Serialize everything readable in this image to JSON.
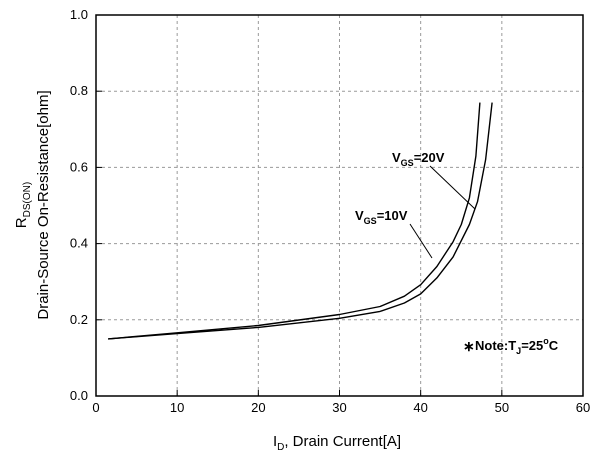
{
  "chart_data": {
    "type": "line",
    "title": "",
    "x_axis": {
      "label_main": "I",
      "label_sub": "D",
      "label_rest": ", Drain Current[A]",
      "lim": [
        0,
        60
      ],
      "ticks": [
        0,
        10,
        20,
        30,
        40,
        50,
        60
      ]
    },
    "y_axis": {
      "label_main": "R",
      "label_sub": "DS(ON)",
      "label_line2": "Drain-Source On-Resistance[ohm]",
      "lim": [
        0.0,
        1.0
      ],
      "ticks": [
        0.0,
        0.2,
        0.4,
        0.6,
        0.8,
        1.0
      ],
      "tick_labels": [
        "0.0",
        "0.2",
        "0.4",
        "0.6",
        "0.8",
        "1.0"
      ]
    },
    "grid": true,
    "series": [
      {
        "name": "VGS=20V",
        "x": [
          1.5,
          10,
          20,
          30,
          35,
          38,
          40,
          42,
          44,
          45,
          46,
          46.8,
          47.3
        ],
        "y": [
          0.15,
          0.166,
          0.185,
          0.214,
          0.235,
          0.262,
          0.292,
          0.34,
          0.405,
          0.45,
          0.52,
          0.63,
          0.77
        ]
      },
      {
        "name": "VGS=10V",
        "x": [
          1.5,
          10,
          20,
          30,
          35,
          38,
          40,
          42,
          44,
          46,
          47,
          48,
          48.8
        ],
        "y": [
          0.15,
          0.164,
          0.18,
          0.204,
          0.222,
          0.244,
          0.268,
          0.31,
          0.365,
          0.45,
          0.51,
          0.62,
          0.77
        ]
      }
    ],
    "annotations": [
      {
        "main": "V",
        "sub": "GS",
        "rest": "=20V"
      },
      {
        "main": "V",
        "sub": "GS",
        "rest": "=10V"
      }
    ],
    "note": {
      "prefix": "Note:T",
      "sub": "J",
      "eq": "=25",
      "sup": "o",
      "unit": "C"
    }
  }
}
